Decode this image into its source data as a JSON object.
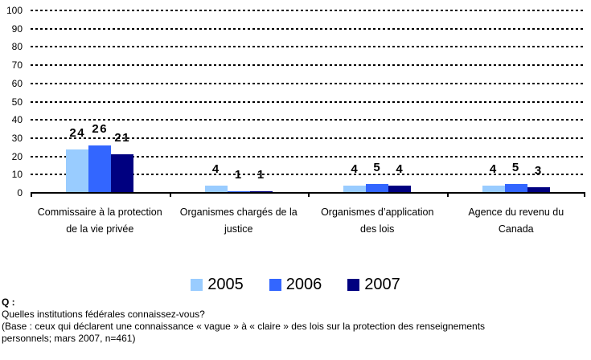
{
  "chart_data": {
    "type": "bar",
    "title": "",
    "xlabel": "",
    "ylabel": "",
    "ylim": [
      0,
      100
    ],
    "ytick_step": 10,
    "grid": "horizontal-dotted",
    "legend_position": "bottom",
    "axis_color": "#000000",
    "categories": [
      "Commissaire à la protection\nde la vie privée",
      "Organismes chargés de la\njustice",
      "Organismes d’application\ndes lois",
      "Agence du revenu du\nCanada"
    ],
    "series": [
      {
        "name": "2005",
        "color": "#99CCFF",
        "values": [
          24,
          4,
          4,
          4
        ]
      },
      {
        "name": "2006",
        "color": "#3366FF",
        "values": [
          26,
          1,
          5,
          5
        ]
      },
      {
        "name": "2007",
        "color": "#000080",
        "values": [
          21,
          1,
          4,
          3
        ]
      }
    ]
  },
  "footer": {
    "q_label": "Q :",
    "question": "Quelles institutions fédérales connaissez-vous?",
    "base_line1": "(Base : ceux qui déclarent une connaissance « vague » à « claire » des lois sur la protection des renseignements",
    "base_line2": "personnels; mars 2007, n=461)"
  }
}
